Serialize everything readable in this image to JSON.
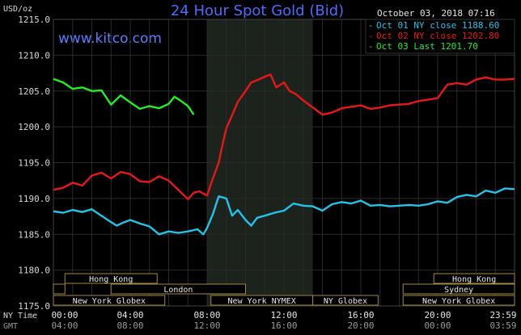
{
  "header": {
    "title": "24 Hour Spot Gold (Bid)",
    "site": "www.kitco.com",
    "datetime": "October 03, 2018 07:16",
    "unit": "USD/oz"
  },
  "timezones": {
    "primary": "NY Time",
    "secondary": "GMT"
  },
  "colors": {
    "background": "#000000",
    "plot_area": "#000000",
    "shade": "#1c221c",
    "grid": "#2a2a2a",
    "session_box": "#a08a3a",
    "oct01": "#22c4ea",
    "oct02": "#e81818",
    "oct03": "#22ee22"
  },
  "chart_data": {
    "type": "line",
    "title": "24 Hour Spot Gold (Bid)",
    "ylabel": "USD/oz",
    "xlabel": "",
    "ylim": [
      1175,
      1215
    ],
    "xlim": [
      0,
      24
    ],
    "yticks": [
      "1175.0",
      "1180.0",
      "1185.0",
      "1190.0",
      "1195.0",
      "1200.0",
      "1205.0",
      "1210.0",
      "1215.0"
    ],
    "yticks_values": [
      1175,
      1180,
      1185,
      1190,
      1195,
      1200,
      1205,
      1210,
      1215
    ],
    "xticks_ny": [
      "00:00",
      "04:00",
      "08:00",
      "12:00",
      "16:00",
      "20:00",
      "23:59"
    ],
    "xticks_gmt": [
      "04:00",
      "08:00",
      "12:00",
      "16:00",
      "20:00",
      "00:00",
      "03:59"
    ],
    "xticks_values": [
      0,
      4,
      8,
      12,
      16,
      20,
      24
    ],
    "grid": true,
    "legend_position": "top-right",
    "shaded_hours": [
      8.0,
      13.5
    ],
    "sessions": [
      {
        "label": "Hong Kong",
        "row": 1,
        "start": 0.6,
        "end": 5.4
      },
      {
        "label": "",
        "row": 2,
        "start": 0.0,
        "end": 0.6
      },
      {
        "label": "London",
        "row": 2,
        "start": 3.0,
        "end": 10.0
      },
      {
        "label": "New York Globex",
        "row": 3,
        "start": 0.0,
        "end": 5.8
      },
      {
        "label": "New York NYMEX",
        "row": 3,
        "start": 8.2,
        "end": 13.5
      },
      {
        "label": "NY Globex",
        "row": 3,
        "start": 13.5,
        "end": 16.9
      },
      {
        "label": "Hong Kong",
        "row": 1,
        "start": 19.8,
        "end": 24.0
      },
      {
        "label": "Sydney",
        "row": 2,
        "start": 18.2,
        "end": 24.0
      },
      {
        "label": "New York Globex",
        "row": 3,
        "start": 18.2,
        "end": 24.0
      }
    ],
    "series": [
      {
        "name": "Oct 01 NY close 1188.60",
        "color": "#22c4ea",
        "x": [
          0,
          0.5,
          1,
          1.5,
          2,
          2.5,
          3,
          3.3,
          3.6,
          4,
          4.5,
          5,
          5.5,
          6,
          6.5,
          7,
          7.5,
          7.8,
          8,
          8.3,
          8.6,
          9,
          9.3,
          9.6,
          10,
          10.3,
          10.6,
          11,
          11.5,
          12,
          12.5,
          13,
          13.5,
          14,
          14.5,
          15,
          15.5,
          16,
          16.5,
          17,
          17.5,
          18,
          18.5,
          19,
          19.5,
          20,
          20.5,
          21,
          21.5,
          22,
          22.5,
          23,
          23.5,
          24
        ],
        "y": [
          1188.2,
          1188.0,
          1188.4,
          1188.1,
          1188.5,
          1187.6,
          1186.7,
          1186.2,
          1186.6,
          1187.0,
          1186.5,
          1186.1,
          1185.0,
          1185.4,
          1185.2,
          1185.4,
          1185.7,
          1185.0,
          1185.9,
          1187.8,
          1190.3,
          1190.0,
          1187.6,
          1188.4,
          1187.0,
          1186.2,
          1187.3,
          1187.6,
          1188.0,
          1188.3,
          1189.3,
          1189.0,
          1188.9,
          1188.3,
          1189.2,
          1189.5,
          1189.3,
          1189.7,
          1189.0,
          1189.1,
          1188.9,
          1189.0,
          1189.1,
          1189.0,
          1189.2,
          1189.6,
          1189.4,
          1190.2,
          1190.5,
          1190.3,
          1191.1,
          1190.8,
          1191.4,
          1191.3
        ]
      },
      {
        "name": "Oct 02 NY close 1202.80",
        "color": "#e81818",
        "x": [
          0,
          0.5,
          1,
          1.5,
          2,
          2.5,
          3,
          3.5,
          4,
          4.5,
          5,
          5.5,
          6,
          6.5,
          7,
          7.3,
          7.6,
          8,
          8.3,
          8.6,
          8.8,
          9,
          9.3,
          9.6,
          10,
          10.3,
          10.6,
          11,
          11.3,
          11.6,
          12,
          12.3,
          12.6,
          13,
          13.5,
          14,
          14.5,
          15,
          15.5,
          16,
          16.5,
          17,
          17.5,
          18,
          18.5,
          19,
          19.5,
          20,
          20.5,
          21,
          21.5,
          22,
          22.5,
          23,
          23.5,
          24
        ],
        "y": [
          1191.2,
          1191.5,
          1192.2,
          1191.8,
          1193.2,
          1193.6,
          1192.8,
          1193.7,
          1193.4,
          1192.4,
          1192.3,
          1193.1,
          1192.5,
          1191.2,
          1189.9,
          1190.8,
          1191.0,
          1190.4,
          1192.8,
          1195.0,
          1197.5,
          1199.8,
          1201.6,
          1203.5,
          1205.0,
          1206.2,
          1206.5,
          1207.0,
          1207.3,
          1205.5,
          1206.2,
          1205.0,
          1204.6,
          1203.7,
          1202.7,
          1201.7,
          1202.0,
          1202.6,
          1202.8,
          1203.0,
          1202.5,
          1202.7,
          1203.0,
          1203.1,
          1203.2,
          1203.6,
          1203.8,
          1204.0,
          1205.9,
          1206.1,
          1205.9,
          1206.6,
          1206.9,
          1206.6,
          1206.6,
          1206.7
        ]
      },
      {
        "name": "Oct 03 Last 1201.70",
        "color": "#22ee22",
        "x": [
          0,
          0.5,
          1,
          1.5,
          2,
          2.5,
          3,
          3.5,
          4,
          4.5,
          5,
          5.5,
          6,
          6.3,
          6.6,
          7,
          7.3
        ],
        "y": [
          1206.7,
          1206.2,
          1205.3,
          1205.5,
          1205.0,
          1205.1,
          1203.1,
          1204.4,
          1203.4,
          1202.5,
          1202.9,
          1202.6,
          1203.2,
          1204.2,
          1203.7,
          1202.9,
          1201.7
        ]
      }
    ]
  }
}
